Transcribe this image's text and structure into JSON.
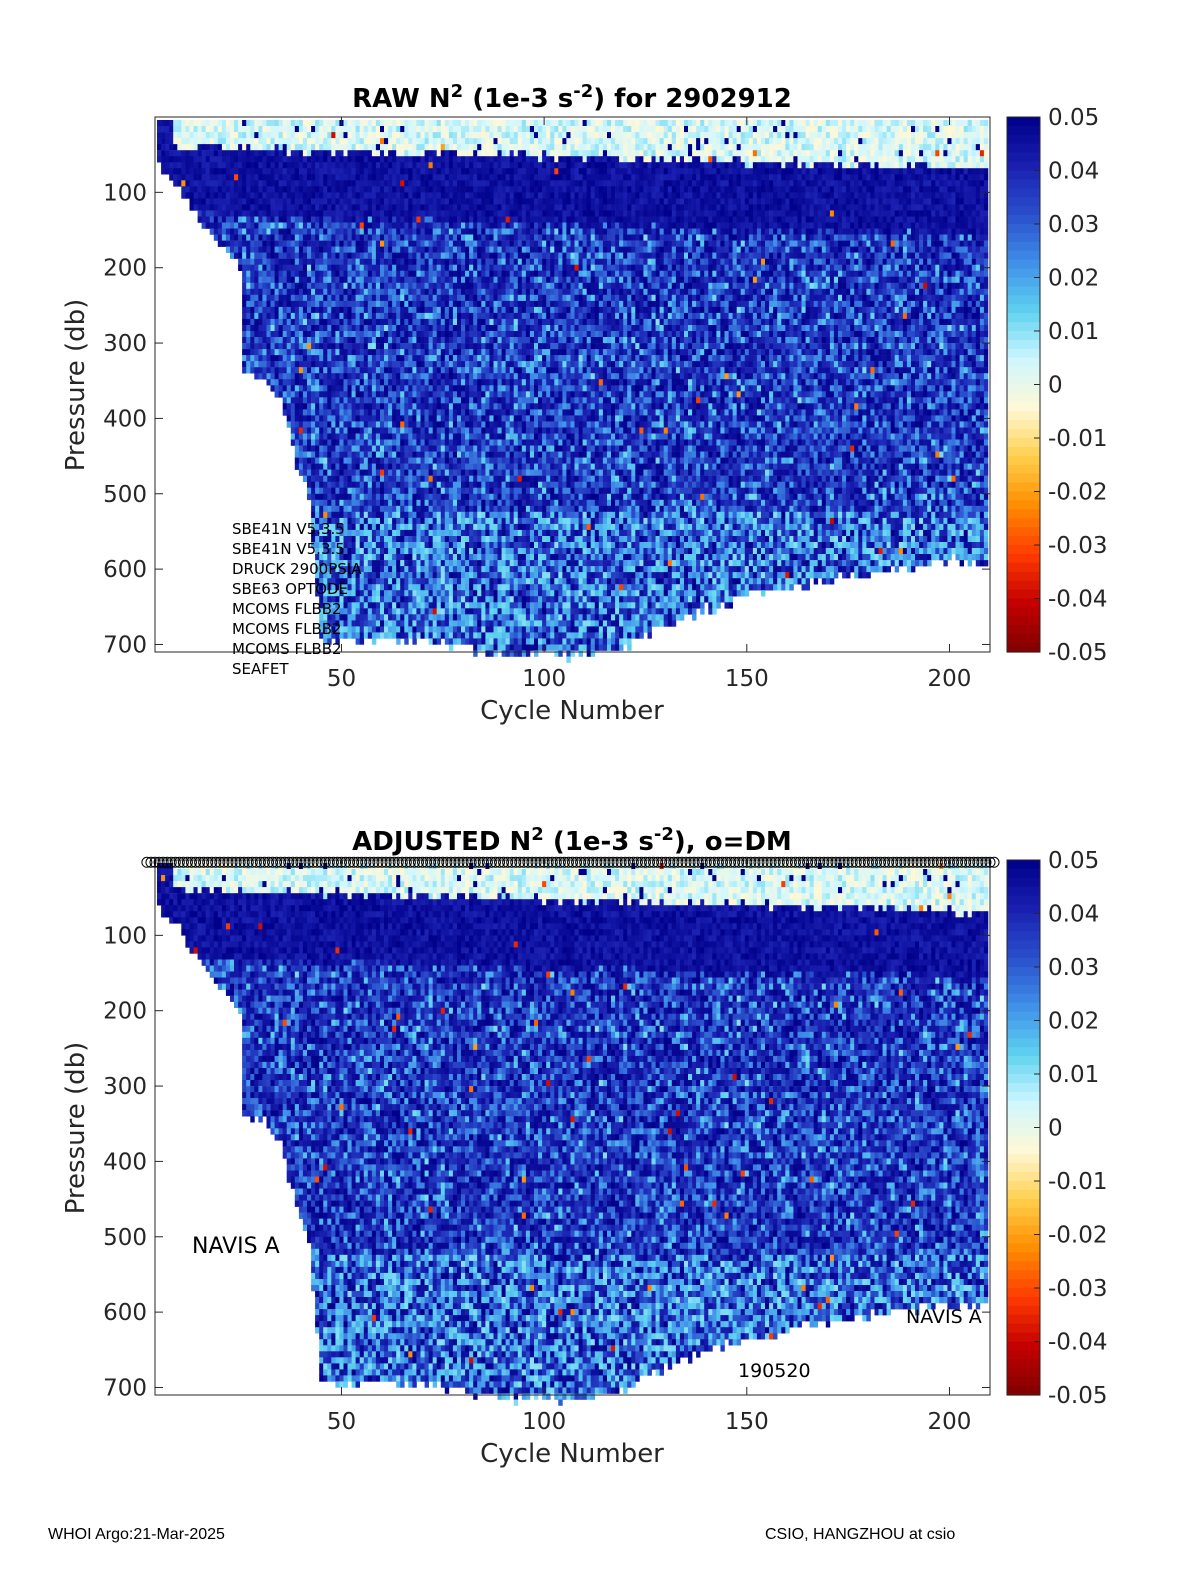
{
  "colors": {
    "colormap": [
      "#7f0000",
      "#c40000",
      "#ff3a00",
      "#ff8c00",
      "#ffcf4a",
      "#fff8d6",
      "#cff7ff",
      "#5fd2f0",
      "#3f8fe8",
      "#2a4fcc",
      "#1a1fb0",
      "#00008a"
    ]
  },
  "chart_data": [
    {
      "type": "heatmap",
      "title": "RAW N² (1e-3 s⁻²) for 2902912",
      "title_parts": {
        "main": "RAW N",
        "sup1": "2",
        "mid": " (1e-3 s",
        "sup2": "-2",
        "end": ") for 2902912"
      },
      "xlabel": "Cycle Number",
      "ylabel": "Pressure (db)",
      "xlim": [
        4,
        210
      ],
      "ylim": [
        0,
        710
      ],
      "y_reversed": true,
      "xticks": [
        "50",
        "100",
        "150",
        "200"
      ],
      "yticks": [
        "100",
        "200",
        "300",
        "400",
        "500",
        "600",
        "700"
      ],
      "colorbar": {
        "clim": [
          -0.05,
          0.05
        ],
        "ticks": [
          "0.05",
          "0.04",
          "0.03",
          "0.02",
          "0.01",
          "0",
          "-0.01",
          "-0.02",
          "-0.03",
          "-0.04",
          "-0.05"
        ]
      },
      "annotations": [
        "SBE41N V5.3.5",
        "SBE41N V5.3.5",
        "DRUCK 2900PSIA",
        "SBE63 OPTODE",
        "MCOMS FLBB2",
        "MCOMS FLBB2",
        "MCOMS FLBB2",
        "SEAFET"
      ],
      "surface_layer": {
        "depth_db": [
          0,
          60
        ],
        "value_range": [
          -0.005,
          0.01
        ]
      },
      "thermocline": {
        "depth_db": [
          20,
          160
        ],
        "value": 0.05
      },
      "interior": {
        "value_range": [
          0.01,
          0.05
        ]
      },
      "max_depth_profile": {
        "cycles": [
          4,
          10,
          15,
          20,
          25,
          26,
          30,
          35,
          38,
          42,
          45,
          50,
          60,
          70,
          80,
          90,
          100,
          110,
          120,
          130,
          140,
          150,
          160,
          170,
          180,
          190,
          200,
          210
        ],
        "pressure_db": [
          60,
          90,
          130,
          160,
          200,
          340,
          340,
          370,
          440,
          500,
          690,
          690,
          690,
          690,
          700,
          710,
          710,
          710,
          700,
          670,
          650,
          630,
          620,
          610,
          600,
          595,
          585,
          590
        ]
      },
      "grid": false,
      "legend": "none"
    },
    {
      "type": "heatmap",
      "title": "ADJUSTED N² (1e-3 s⁻²), o=DM",
      "title_parts": {
        "main": "ADJUSTED N",
        "sup1": "2",
        "mid": " (1e-3 s",
        "sup2": "-2",
        "end": "), o=DM"
      },
      "xlabel": "Cycle Number",
      "ylabel": "Pressure (db)",
      "xlim": [
        4,
        210
      ],
      "ylim": [
        0,
        710
      ],
      "y_reversed": true,
      "xticks": [
        "50",
        "100",
        "150",
        "200"
      ],
      "yticks": [
        "100",
        "200",
        "300",
        "400",
        "500",
        "600",
        "700"
      ],
      "colorbar": {
        "clim": [
          -0.05,
          0.05
        ],
        "ticks": [
          "0.05",
          "0.04",
          "0.03",
          "0.02",
          "0.01",
          "0",
          "-0.01",
          "-0.02",
          "-0.03",
          "-0.04",
          "-0.05"
        ]
      },
      "dm_markers": {
        "cycles_from": 2,
        "cycles_to": 211,
        "pressure_db": 3,
        "marker": "o"
      },
      "annotations": {
        "left_label": "NAVIS A",
        "right_label": "NAVIS A",
        "date_label": "190520"
      },
      "surface_layer": {
        "depth_db": [
          0,
          60
        ],
        "value_range": [
          -0.005,
          0.01
        ]
      },
      "thermocline": {
        "depth_db": [
          20,
          160
        ],
        "value": 0.05
      },
      "interior": {
        "value_range": [
          0.01,
          0.05
        ]
      },
      "max_depth_profile": {
        "cycles": [
          4,
          10,
          15,
          20,
          25,
          26,
          30,
          35,
          38,
          42,
          45,
          50,
          60,
          70,
          80,
          90,
          100,
          110,
          120,
          130,
          140,
          150,
          160,
          170,
          180,
          190,
          200,
          210
        ],
        "pressure_db": [
          60,
          90,
          130,
          160,
          200,
          340,
          340,
          370,
          440,
          500,
          690,
          690,
          690,
          690,
          700,
          710,
          710,
          710,
          700,
          670,
          650,
          630,
          620,
          610,
          600,
          595,
          585,
          590
        ]
      },
      "grid": false,
      "legend": "none"
    }
  ],
  "footer": {
    "left": "WHOI Argo:21-Mar-2025",
    "right": "CSIO, HANGZHOU at csio"
  }
}
